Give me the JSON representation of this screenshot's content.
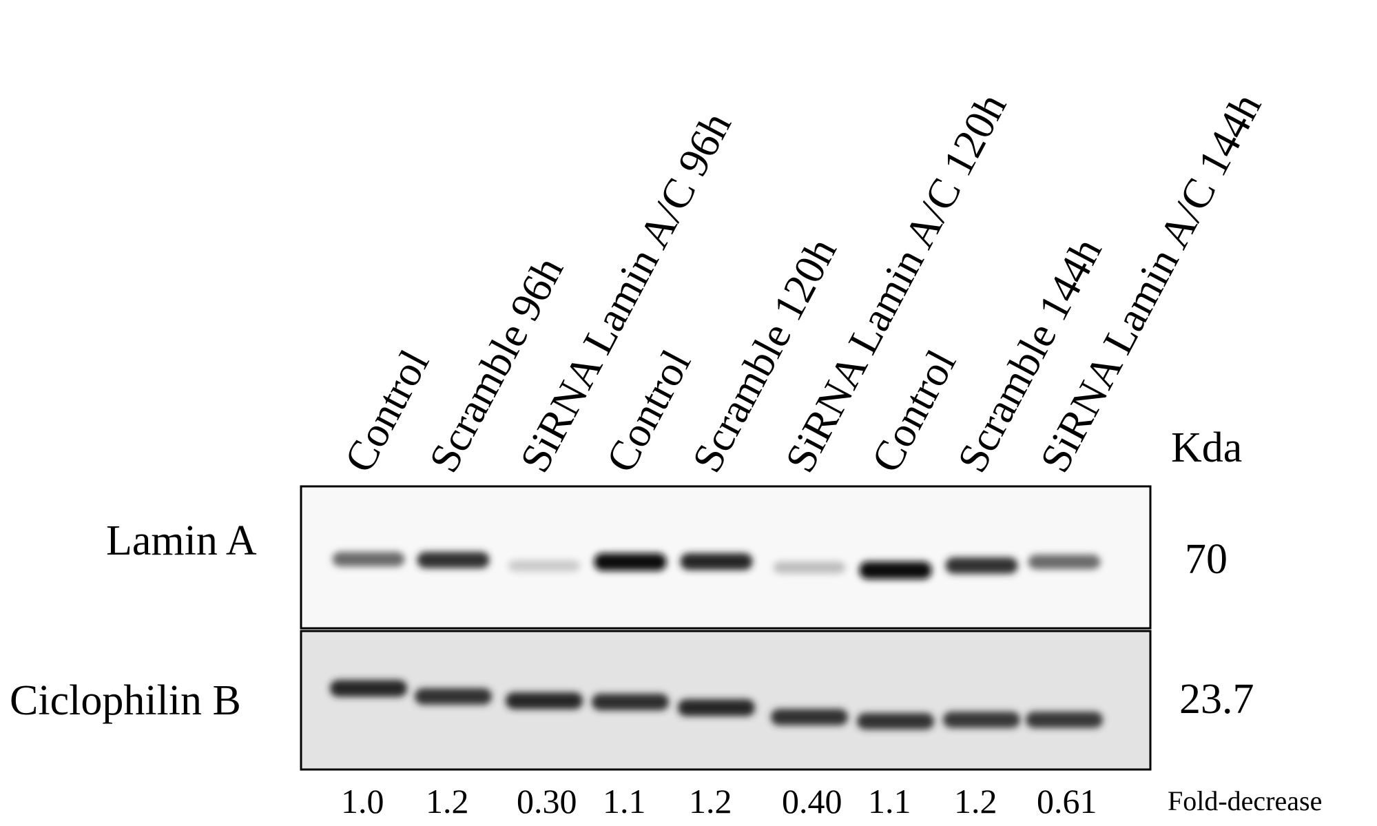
{
  "lanes": [
    {
      "label": "Control",
      "fold": "1.0"
    },
    {
      "label": "Scramble 96h",
      "fold": "1.2"
    },
    {
      "label": "SiRNA Lamin A/C 96h",
      "fold": "0.30"
    },
    {
      "label": "Control",
      "fold": "1.1"
    },
    {
      "label": "Scramble 120h",
      "fold": "1.2"
    },
    {
      "label": "SiRNA Lamin A/C 120h",
      "fold": "0.40"
    },
    {
      "label": "Control",
      "fold": "1.1"
    },
    {
      "label": "Scramble 144h",
      "fold": "1.2"
    },
    {
      "label": "SiRNA Lamin A/C 144h",
      "fold": "0.61"
    }
  ],
  "kda_header": "Kda",
  "panels": [
    {
      "name": "Lamin A",
      "kda": "70",
      "background": "#f8f8f8",
      "band_intensity": [
        0.55,
        0.8,
        0.12,
        0.95,
        0.85,
        0.18,
        0.97,
        0.8,
        0.55
      ]
    },
    {
      "name": "Ciclophilin B",
      "kda": "23.7",
      "background": "#e3e3e3",
      "band_intensity": [
        0.85,
        0.8,
        0.85,
        0.82,
        0.86,
        0.8,
        0.8,
        0.78,
        0.78
      ]
    }
  ],
  "fold_caption": "Fold-decrease"
}
